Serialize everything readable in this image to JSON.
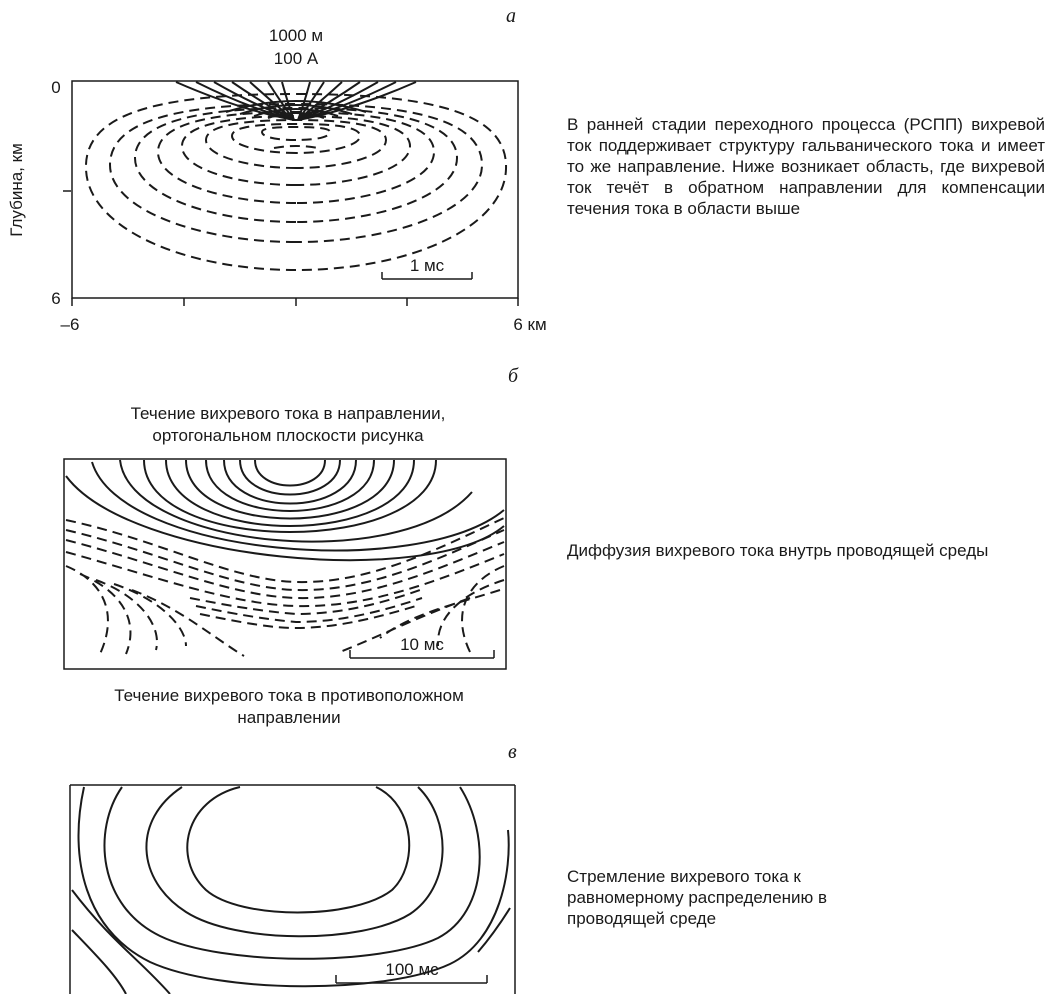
{
  "panel_a": {
    "letter": "а",
    "source_label_1": "1000 м",
    "source_label_2": "100 А",
    "y_axis_label": "Глубина, км",
    "y_tick_top": "0",
    "y_tick_bottom": "6",
    "x_tick_left": "–6",
    "x_tick_right": "6 км",
    "scale_label": "1 мс",
    "description": "В ранней стадии переходного процесса (РСПП) вихревой ток поддерживает структуру гальванического тока и имеет то же направление. Ниже возникает область, где вихревой ток течёт в обратном направлении для компенсации течения тока в области выше"
  },
  "panel_b": {
    "letter": "б",
    "caption_top": "Течение вихревого тока в направлении, ортогональном плоскости рисунка",
    "caption_bottom": "Течение вихревого тока в противоположном направлении",
    "scale_label": "10 мс",
    "description": "Диффузия вихревого тока внутрь проводящей среды"
  },
  "panel_c": {
    "letter": "в",
    "scale_label": "100 мс",
    "description": "Стремление вихревого тока к равномерному распределению в проводящей среде"
  }
}
